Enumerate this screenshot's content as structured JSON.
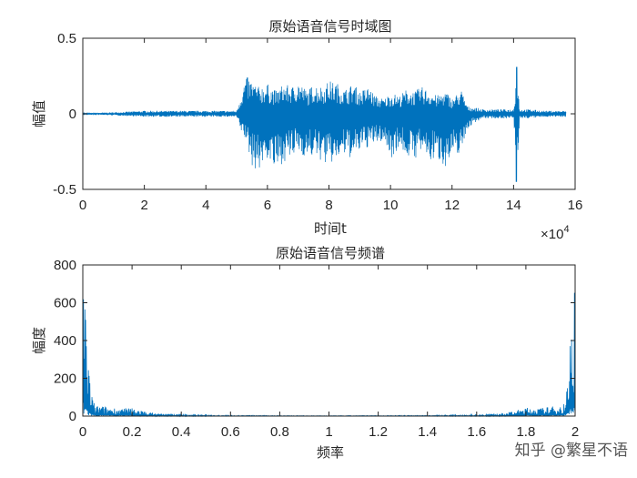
{
  "chart_data": [
    {
      "type": "line",
      "title": "原始语音信号时域图",
      "xlabel": "时间t",
      "ylabel": "幅值",
      "xlim": [
        0,
        160000
      ],
      "ylim": [
        -0.5,
        0.5
      ],
      "x_ticks": [
        "0",
        "2",
        "4",
        "6",
        "8",
        "10",
        "12",
        "14",
        "16"
      ],
      "x_multiplier": "×10",
      "x_multiplier_exp": "4",
      "y_ticks": [
        "-0.5",
        "0",
        "0.5"
      ],
      "color": "#0072BD",
      "series": [
        {
          "x": [
            0,
            10000,
            20000,
            30000,
            40000,
            50000,
            51000,
            53000,
            55000,
            57000,
            60000,
            63000,
            65000,
            68000,
            70000,
            73000,
            75000,
            78000,
            80000,
            83000,
            85000,
            88000,
            90000,
            93000,
            95000,
            98000,
            100000,
            103000,
            105000,
            108000,
            110000,
            113000,
            115000,
            118000,
            120000,
            123000,
            125000,
            128000,
            130000,
            135000,
            140000,
            141000,
            142000,
            145000,
            150000,
            155000,
            157000
          ],
          "y_max": [
            0.005,
            0.01,
            0.02,
            0.02,
            0.02,
            0.02,
            0.1,
            0.25,
            0.22,
            0.18,
            0.2,
            0.15,
            0.2,
            0.18,
            0.22,
            0.15,
            0.2,
            0.18,
            0.22,
            0.2,
            0.16,
            0.2,
            0.15,
            0.18,
            0.12,
            0.1,
            0.14,
            0.12,
            0.16,
            0.15,
            0.18,
            0.15,
            0.12,
            0.15,
            0.1,
            0.16,
            0.05,
            0.04,
            0.03,
            0.03,
            0.03,
            0.31,
            0.03,
            0.03,
            0.02,
            0.02,
            0.02
          ],
          "y_min": [
            -0.005,
            -0.01,
            -0.02,
            -0.02,
            -0.02,
            -0.02,
            -0.1,
            -0.18,
            -0.35,
            -0.38,
            -0.3,
            -0.4,
            -0.32,
            -0.3,
            -0.25,
            -0.3,
            -0.28,
            -0.32,
            -0.35,
            -0.3,
            -0.28,
            -0.3,
            -0.25,
            -0.22,
            -0.2,
            -0.18,
            -0.3,
            -0.22,
            -0.28,
            -0.3,
            -0.25,
            -0.32,
            -0.3,
            -0.35,
            -0.3,
            -0.25,
            -0.1,
            -0.05,
            -0.03,
            -0.03,
            -0.03,
            -0.45,
            -0.03,
            -0.03,
            -0.02,
            -0.02,
            -0.02
          ]
        }
      ]
    },
    {
      "type": "line",
      "title": "原始语音信号频谱",
      "xlabel": "频率",
      "ylabel": "幅度",
      "xlim": [
        0,
        2
      ],
      "ylim": [
        0,
        800
      ],
      "x_ticks": [
        "0",
        "0.2",
        "0.4",
        "0.6",
        "0.8",
        "1",
        "1.2",
        "1.4",
        "1.6",
        "1.8",
        "2"
      ],
      "y_ticks": [
        "0",
        "200",
        "400",
        "600",
        "800"
      ],
      "color": "#0072BD",
      "series": [
        {
          "x": [
            0,
            0.005,
            0.01,
            0.02,
            0.03,
            0.04,
            0.05,
            0.07,
            0.1,
            0.15,
            0.2,
            0.25,
            0.3,
            0.4,
            0.6,
            0.8,
            1.0,
            1.2,
            1.4,
            1.6,
            1.7,
            1.75,
            1.8,
            1.85,
            1.9,
            1.93,
            1.95,
            1.96,
            1.97,
            1.98,
            1.99,
            1.995,
            2.0
          ],
          "y": [
            760,
            740,
            620,
            400,
            180,
            90,
            60,
            55,
            50,
            40,
            45,
            25,
            15,
            8,
            4,
            3,
            2,
            3,
            4,
            8,
            15,
            25,
            45,
            40,
            50,
            55,
            60,
            90,
            180,
            400,
            620,
            740,
            760
          ]
        }
      ]
    }
  ],
  "watermark": "知乎 @繁星不语"
}
